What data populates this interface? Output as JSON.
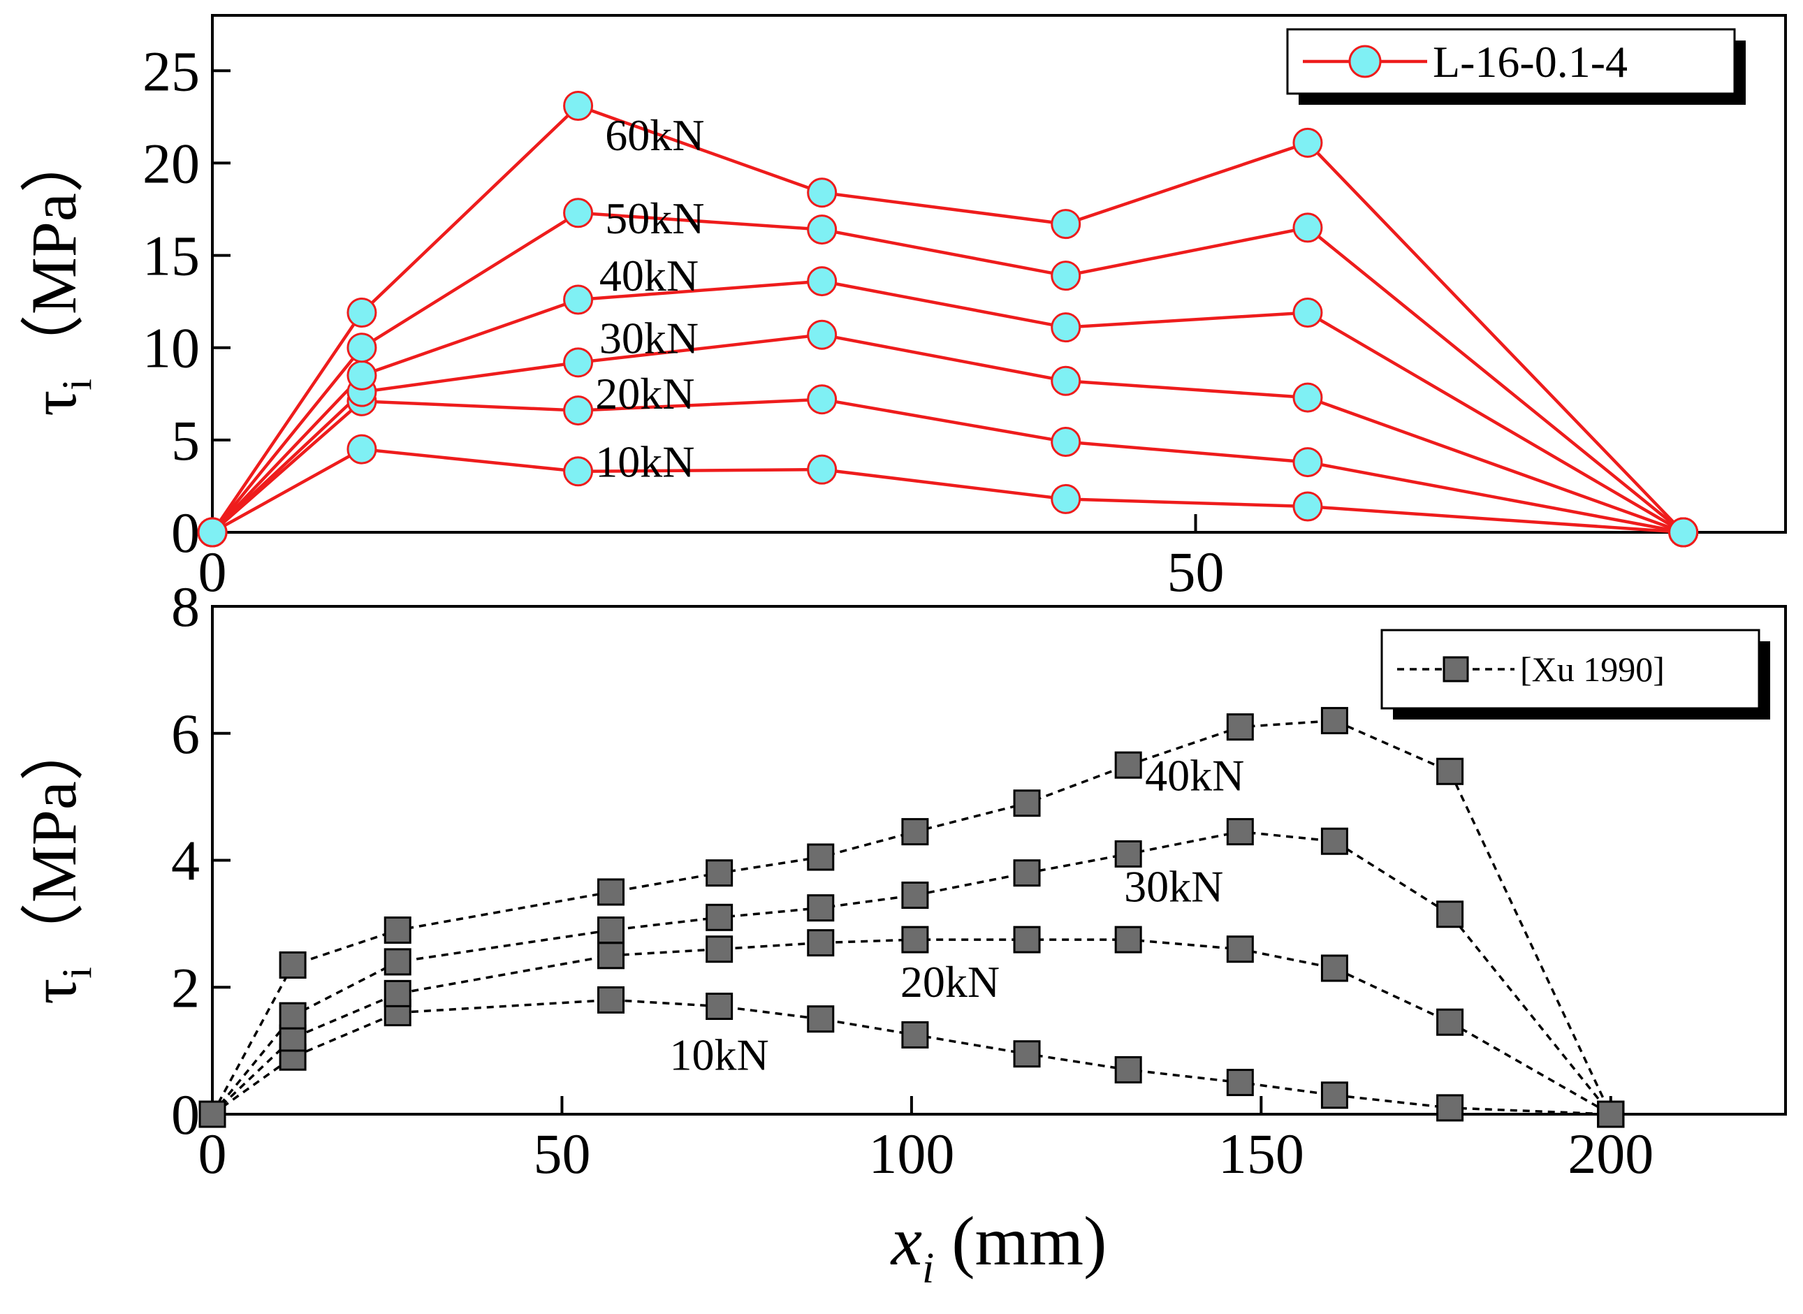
{
  "chart_data": [
    {
      "type": "line",
      "title": "",
      "xlabel": "",
      "ylabel": "τi（MPa）",
      "ylabel_parts": {
        "symbol": "τ",
        "sub": "i",
        "unit": "（MPa）"
      },
      "xlim": [
        0,
        80
      ],
      "ylim": [
        0,
        28
      ],
      "xticks": [
        0,
        50
      ],
      "yticks": [
        0,
        5,
        10,
        15,
        20,
        25
      ],
      "tick_labels_x": [
        "0",
        "50"
      ],
      "tick_labels_y": [
        "0",
        "5",
        "10",
        "15",
        "20",
        "25"
      ],
      "grid": false,
      "legend": {
        "label": "L-16-0.1-4",
        "position": "top-right"
      },
      "style": {
        "line": "#ee1c1c",
        "marker": "circle",
        "marker_fill": "#7ff0f4",
        "marker_edge": "#ee1c1c",
        "dash": "solid"
      },
      "x": [
        0,
        7.6,
        18.6,
        31,
        43.4,
        55.7,
        74.8
      ],
      "series": [
        {
          "name": "10kN",
          "values": [
            0,
            4.5,
            3.3,
            3.4,
            1.8,
            1.4,
            0
          ]
        },
        {
          "name": "20kN",
          "values": [
            0,
            7.1,
            6.6,
            7.2,
            4.9,
            3.8,
            0
          ]
        },
        {
          "name": "30kN",
          "values": [
            0,
            7.6,
            9.2,
            10.7,
            8.2,
            7.3,
            0
          ]
        },
        {
          "name": "40kN",
          "values": [
            0,
            8.5,
            12.6,
            13.6,
            11.1,
            11.9,
            0
          ]
        },
        {
          "name": "50kN",
          "values": [
            0,
            10.0,
            17.3,
            16.4,
            13.9,
            16.5,
            0
          ]
        },
        {
          "name": "60kN",
          "values": [
            0,
            11.9,
            23.1,
            18.4,
            16.7,
            21.1,
            0
          ]
        }
      ],
      "annotations": [
        {
          "text": "60kN",
          "x": 22.5,
          "y": 20.7
        },
        {
          "text": "50kN",
          "x": 22.5,
          "y": 16.2
        },
        {
          "text": "40kN",
          "x": 22.2,
          "y": 13.1
        },
        {
          "text": "30kN",
          "x": 22.2,
          "y": 9.7
        },
        {
          "text": "20kN",
          "x": 22.0,
          "y": 6.7
        },
        {
          "text": "10kN",
          "x": 22.0,
          "y": 3.0
        }
      ]
    },
    {
      "type": "line",
      "title": "",
      "xlabel": "xi (mm)",
      "xlabel_parts": {
        "symbol": "x",
        "sub": "i",
        "unit": " (mm)"
      },
      "ylabel": "τi（MPa）",
      "ylabel_parts": {
        "symbol": "τ",
        "sub": "i",
        "unit": "（MPa）"
      },
      "xlim": [
        0,
        225
      ],
      "ylim": [
        0,
        8
      ],
      "xticks": [
        0,
        50,
        100,
        150,
        200
      ],
      "yticks": [
        0,
        2,
        4,
        6,
        8
      ],
      "tick_labels_x": [
        "0",
        "50",
        "100",
        "150",
        "200"
      ],
      "tick_labels_y": [
        "0",
        "2",
        "4",
        "6",
        "8"
      ],
      "grid": false,
      "legend": {
        "label": "[Xu 1990]",
        "position": "top-right"
      },
      "style": {
        "line": "#000000",
        "marker": "square",
        "marker_fill": "#6d6d6d",
        "marker_edge": "#000000",
        "dash": "dashed"
      },
      "x": [
        0,
        11.5,
        26.5,
        57,
        72.5,
        87,
        100.5,
        116.5,
        131,
        147,
        160.5,
        177,
        200
      ],
      "series": [
        {
          "name": "10kN",
          "values": [
            0,
            0.9,
            1.6,
            1.8,
            1.7,
            1.5,
            1.25,
            0.95,
            0.7,
            0.5,
            0.3,
            0.1,
            0
          ]
        },
        {
          "name": "20kN",
          "values": [
            0,
            1.2,
            1.9,
            2.5,
            2.6,
            2.7,
            2.75,
            2.75,
            2.75,
            2.6,
            2.3,
            1.45,
            0
          ]
        },
        {
          "name": "30kN",
          "values": [
            0,
            1.55,
            2.4,
            2.9,
            3.1,
            3.25,
            3.45,
            3.8,
            4.1,
            4.45,
            4.3,
            3.15,
            0
          ]
        },
        {
          "name": "40kN",
          "values": [
            0,
            2.35,
            2.9,
            3.5,
            3.8,
            4.05,
            4.45,
            4.9,
            5.5,
            6.1,
            6.2,
            5.4,
            0
          ]
        }
      ],
      "annotations": [
        {
          "text": "40kN",
          "x": 140.5,
          "y": 5.1
        },
        {
          "text": "30kN",
          "x": 137.5,
          "y": 3.35
        },
        {
          "text": "20kN",
          "x": 105.5,
          "y": 1.85
        },
        {
          "text": "10kN",
          "x": 72.5,
          "y": 0.7
        }
      ]
    }
  ]
}
